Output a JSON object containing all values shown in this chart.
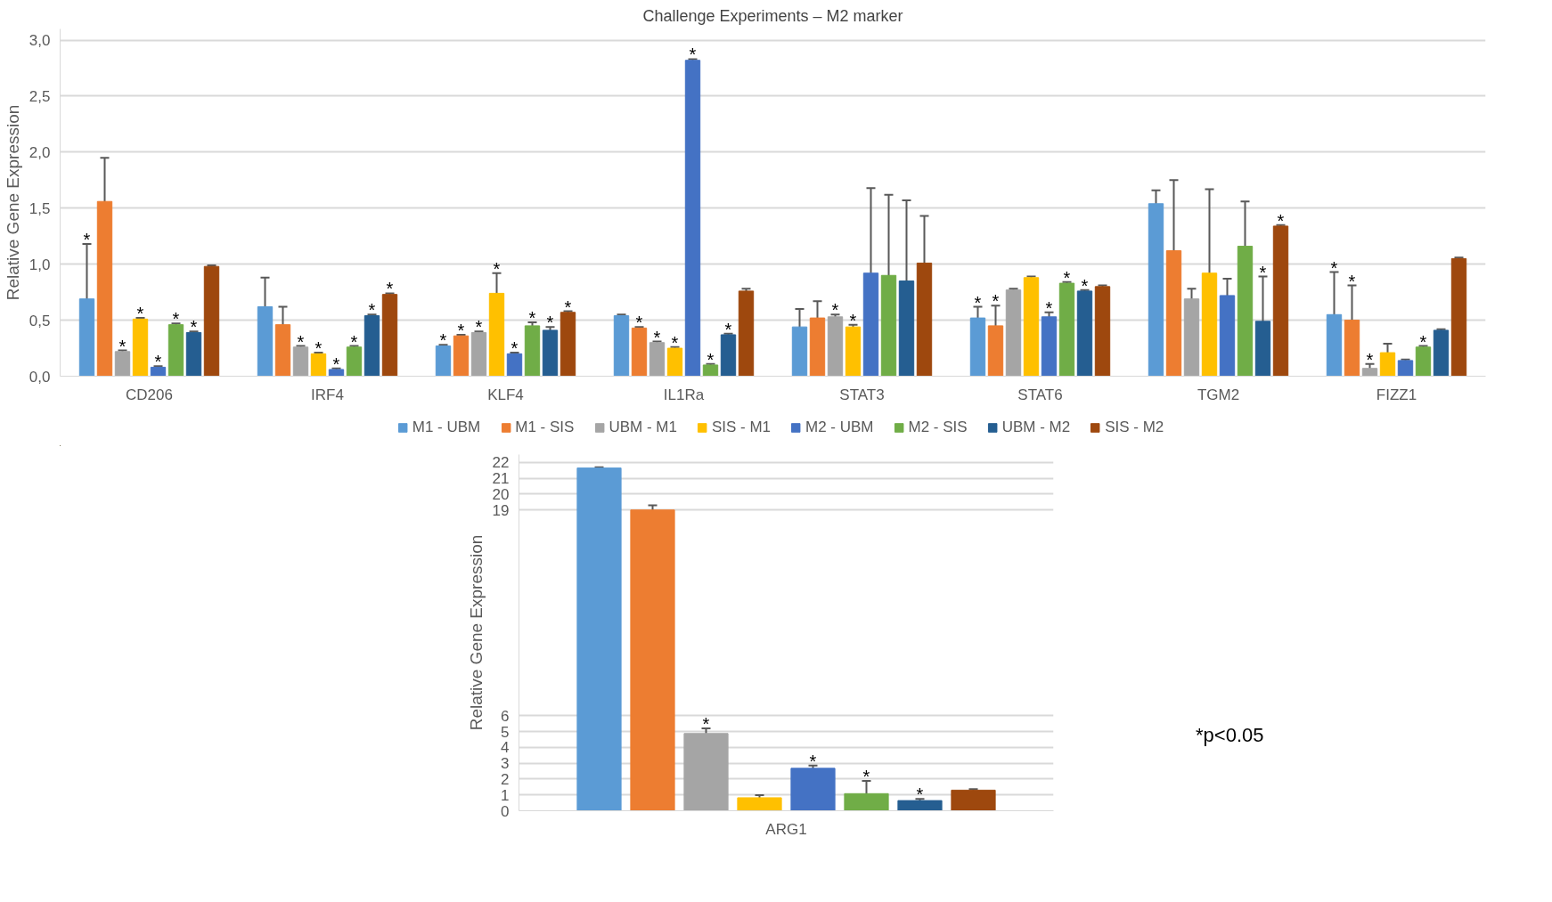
{
  "chart_data": [
    {
      "type": "bar",
      "title": "Challenge Experiments – M2 marker",
      "ylabel": "Relative Gene Expression",
      "categories": [
        "CD206",
        "IRF4",
        "KLF4",
        "IL1Ra",
        "STAT3",
        "STAT6",
        "TGM2",
        "FIZZ1"
      ],
      "series": [
        {
          "name": "M1 - UBM",
          "color": "#5b9bd5",
          "values": [
            0.69,
            0.62,
            0.27,
            0.54,
            0.44,
            0.52,
            1.54,
            0.55
          ],
          "errors": [
            0.49,
            0.26,
            0.01,
            0.01,
            0.16,
            0.1,
            0.12,
            0.38
          ],
          "value_labels": [
            "*",
            null,
            "*",
            null,
            null,
            "*",
            null,
            "*"
          ]
        },
        {
          "name": "M1 - SIS",
          "color": "#ed7d31",
          "values": [
            1.56,
            0.46,
            0.36,
            0.43,
            0.52,
            0.45,
            1.12,
            0.5
          ],
          "errors": [
            0.39,
            0.16,
            0.01,
            0.01,
            0.15,
            0.18,
            0.63,
            0.31
          ],
          "value_labels": [
            null,
            null,
            "*",
            "*",
            null,
            "*",
            null,
            "*"
          ]
        },
        {
          "name": "UBM - M1",
          "color": "#a5a5a5",
          "values": [
            0.22,
            0.26,
            0.39,
            0.3,
            0.53,
            0.77,
            0.69,
            0.07
          ],
          "errors": [
            0.01,
            0.01,
            0.01,
            0.01,
            0.02,
            0.01,
            0.09,
            0.04
          ],
          "value_labels": [
            "*",
            "*",
            "*",
            "*",
            "*",
            null,
            null,
            "*"
          ]
        },
        {
          "name": "SIS - M1",
          "color": "#ffc000",
          "values": [
            0.51,
            0.2,
            0.74,
            0.25,
            0.44,
            0.88,
            0.92,
            0.21
          ],
          "errors": [
            0.01,
            0.01,
            0.18,
            0.01,
            0.02,
            0.01,
            0.75,
            0.08
          ],
          "value_labels": [
            "*",
            "*",
            "*",
            "*",
            "*",
            null,
            null,
            null
          ]
        },
        {
          "name": "M2 - UBM",
          "color": "#4472c4",
          "values": [
            0.08,
            0.06,
            0.2,
            2.82,
            0.92,
            0.53,
            0.72,
            0.14
          ],
          "errors": [
            0.01,
            0.01,
            0.01,
            0.01,
            0.76,
            0.04,
            0.15,
            0.01
          ],
          "value_labels": [
            "*",
            "*",
            "*",
            "*",
            null,
            "*",
            null,
            null
          ]
        },
        {
          "name": "M2 - SIS",
          "color": "#70ad47",
          "values": [
            0.46,
            0.26,
            0.45,
            0.1,
            0.9,
            0.83,
            1.16,
            0.26
          ],
          "errors": [
            0.01,
            0.01,
            0.03,
            0.01,
            0.72,
            0.01,
            0.4,
            0.01
          ],
          "value_labels": [
            "*",
            "*",
            "*",
            "*",
            null,
            "*",
            null,
            "*"
          ]
        },
        {
          "name": "UBM - M2",
          "color": "#255e91",
          "values": [
            0.39,
            0.54,
            0.41,
            0.37,
            0.85,
            0.76,
            0.49,
            0.41
          ],
          "errors": [
            0.01,
            0.01,
            0.03,
            0.01,
            0.72,
            0.01,
            0.4,
            0.01
          ],
          "value_labels": [
            "*",
            "*",
            "*",
            "*",
            null,
            "*",
            "*",
            null
          ]
        },
        {
          "name": "SIS - M2",
          "color": "#9e480e",
          "values": [
            0.98,
            0.73,
            0.57,
            0.76,
            1.01,
            0.8,
            1.34,
            1.05
          ],
          "errors": [
            0.01,
            0.01,
            0.01,
            0.02,
            0.42,
            0.01,
            0.01,
            0.01
          ],
          "value_labels": [
            null,
            "*",
            "*",
            null,
            null,
            null,
            "*",
            null
          ]
        }
      ],
      "ylim": [
        0,
        3.1
      ],
      "yticks": [
        {
          "value": 0,
          "label": "0,0"
        },
        {
          "value": 0.5,
          "label": "0,5"
        },
        {
          "value": 1,
          "label": "1,0"
        },
        {
          "value": 1.5,
          "label": "1,5"
        },
        {
          "value": 2,
          "label": "2,0"
        },
        {
          "value": 2.5,
          "label": "2,5"
        },
        {
          "value": 3,
          "label": "3,0"
        }
      ],
      "grid": "y",
      "legend": "bottom"
    },
    {
      "type": "bar",
      "ylabel": "Relative Gene Expression",
      "categories": [
        "ARG1"
      ],
      "series": [
        {
          "color": "#5b9bd5",
          "values": [
            21.65
          ],
          "errors": [
            0.05
          ],
          "value_labels": [
            null
          ]
        },
        {
          "color": "#ed7d31",
          "values": [
            19.0
          ],
          "errors": [
            0.3
          ],
          "value_labels": [
            null
          ]
        },
        {
          "color": "#a5a5a5",
          "values": [
            4.88
          ],
          "errors": [
            0.32
          ],
          "value_labels": [
            "*"
          ]
        },
        {
          "color": "#ffc000",
          "values": [
            0.82
          ],
          "errors": [
            0.17
          ],
          "value_labels": [
            null
          ]
        },
        {
          "color": "#4472c4",
          "values": [
            2.68
          ],
          "errors": [
            0.18
          ],
          "value_labels": [
            "*"
          ]
        },
        {
          "color": "#70ad47",
          "values": [
            1.08
          ],
          "errors": [
            0.8
          ],
          "value_labels": [
            "*"
          ]
        },
        {
          "color": "#255e91",
          "values": [
            0.64
          ],
          "errors": [
            0.1
          ],
          "value_labels": [
            "*"
          ]
        },
        {
          "color": "#9e480e",
          "values": [
            1.3
          ],
          "errors": [
            0.07
          ],
          "value_labels": [
            null
          ]
        }
      ],
      "ylim": [
        0,
        22.5
      ],
      "yticks": [
        0,
        1,
        2,
        3,
        4,
        5,
        6,
        19,
        20,
        21,
        22
      ],
      "grid": "y",
      "annotations": [
        "*p<0.05"
      ]
    }
  ]
}
